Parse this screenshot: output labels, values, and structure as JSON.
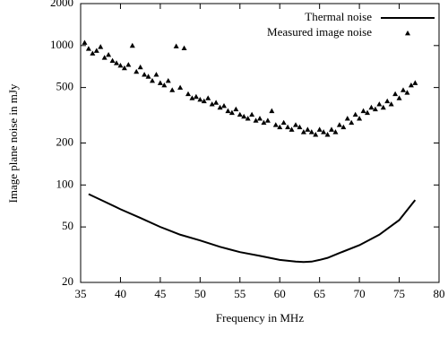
{
  "chart_data": {
    "type": "line",
    "xlabel": "Frequency in MHz",
    "ylabel": "Image plane noise in mJy",
    "xlim": [
      35,
      80
    ],
    "xticks": [
      35,
      40,
      45,
      50,
      55,
      60,
      65,
      70,
      75,
      80
    ],
    "ylim": [
      20,
      2000
    ],
    "yticks": [
      20,
      50,
      100,
      200,
      500,
      1000,
      2000
    ],
    "ylog": true,
    "legend": "upper right",
    "series": [
      {
        "name": "Thermal noise",
        "color": "#000000",
        "style": "line",
        "x": [
          36,
          38,
          40,
          42.5,
          45,
          47.5,
          50,
          52.5,
          55,
          57.5,
          60,
          62,
          63,
          64,
          65,
          66,
          67.5,
          70,
          72.5,
          75,
          77
        ],
        "values": [
          86,
          76,
          67,
          58,
          50,
          44,
          40,
          36,
          33,
          31,
          29,
          28.2,
          28,
          28.2,
          29,
          30,
          32.5,
          37,
          44,
          56,
          78
        ]
      },
      {
        "name": "Measured image noise",
        "color": "#000000",
        "style": "markers",
        "x": [
          35.5,
          36,
          36.5,
          37,
          37.5,
          38,
          38.5,
          39,
          39.5,
          40,
          40.5,
          41,
          41.5,
          42,
          42.5,
          43,
          43.5,
          44,
          44.5,
          45,
          45.5,
          46,
          46.5,
          47,
          47.5,
          48,
          48.5,
          49,
          49.5,
          50,
          50.5,
          51,
          51.5,
          52,
          52.5,
          53,
          53.5,
          54,
          54.5,
          55,
          55.5,
          56,
          56.5,
          57,
          57.5,
          58,
          58.5,
          59,
          59.5,
          60,
          60.5,
          61,
          61.5,
          62,
          62.5,
          63,
          63.5,
          64,
          64.5,
          65,
          65.5,
          66,
          66.5,
          67,
          67.5,
          68,
          68.5,
          69,
          69.5,
          70,
          70.5,
          71,
          71.5,
          72,
          72.5,
          73,
          73.5,
          74,
          74.5,
          75,
          75.5,
          76,
          76.5,
          77
        ],
        "values": [
          1050,
          950,
          880,
          920,
          980,
          820,
          860,
          780,
          750,
          720,
          690,
          730,
          1000,
          650,
          700,
          620,
          600,
          560,
          620,
          540,
          520,
          560,
          480,
          990,
          500,
          960,
          450,
          420,
          430,
          410,
          400,
          420,
          380,
          390,
          360,
          370,
          340,
          330,
          350,
          320,
          310,
          300,
          320,
          290,
          300,
          280,
          290,
          340,
          270,
          260,
          280,
          260,
          250,
          270,
          260,
          240,
          250,
          240,
          230,
          250,
          240,
          230,
          250,
          240,
          270,
          260,
          300,
          280,
          320,
          300,
          340,
          330,
          360,
          350,
          380,
          360,
          400,
          380,
          450,
          420,
          480,
          460,
          520,
          540
        ]
      }
    ]
  }
}
